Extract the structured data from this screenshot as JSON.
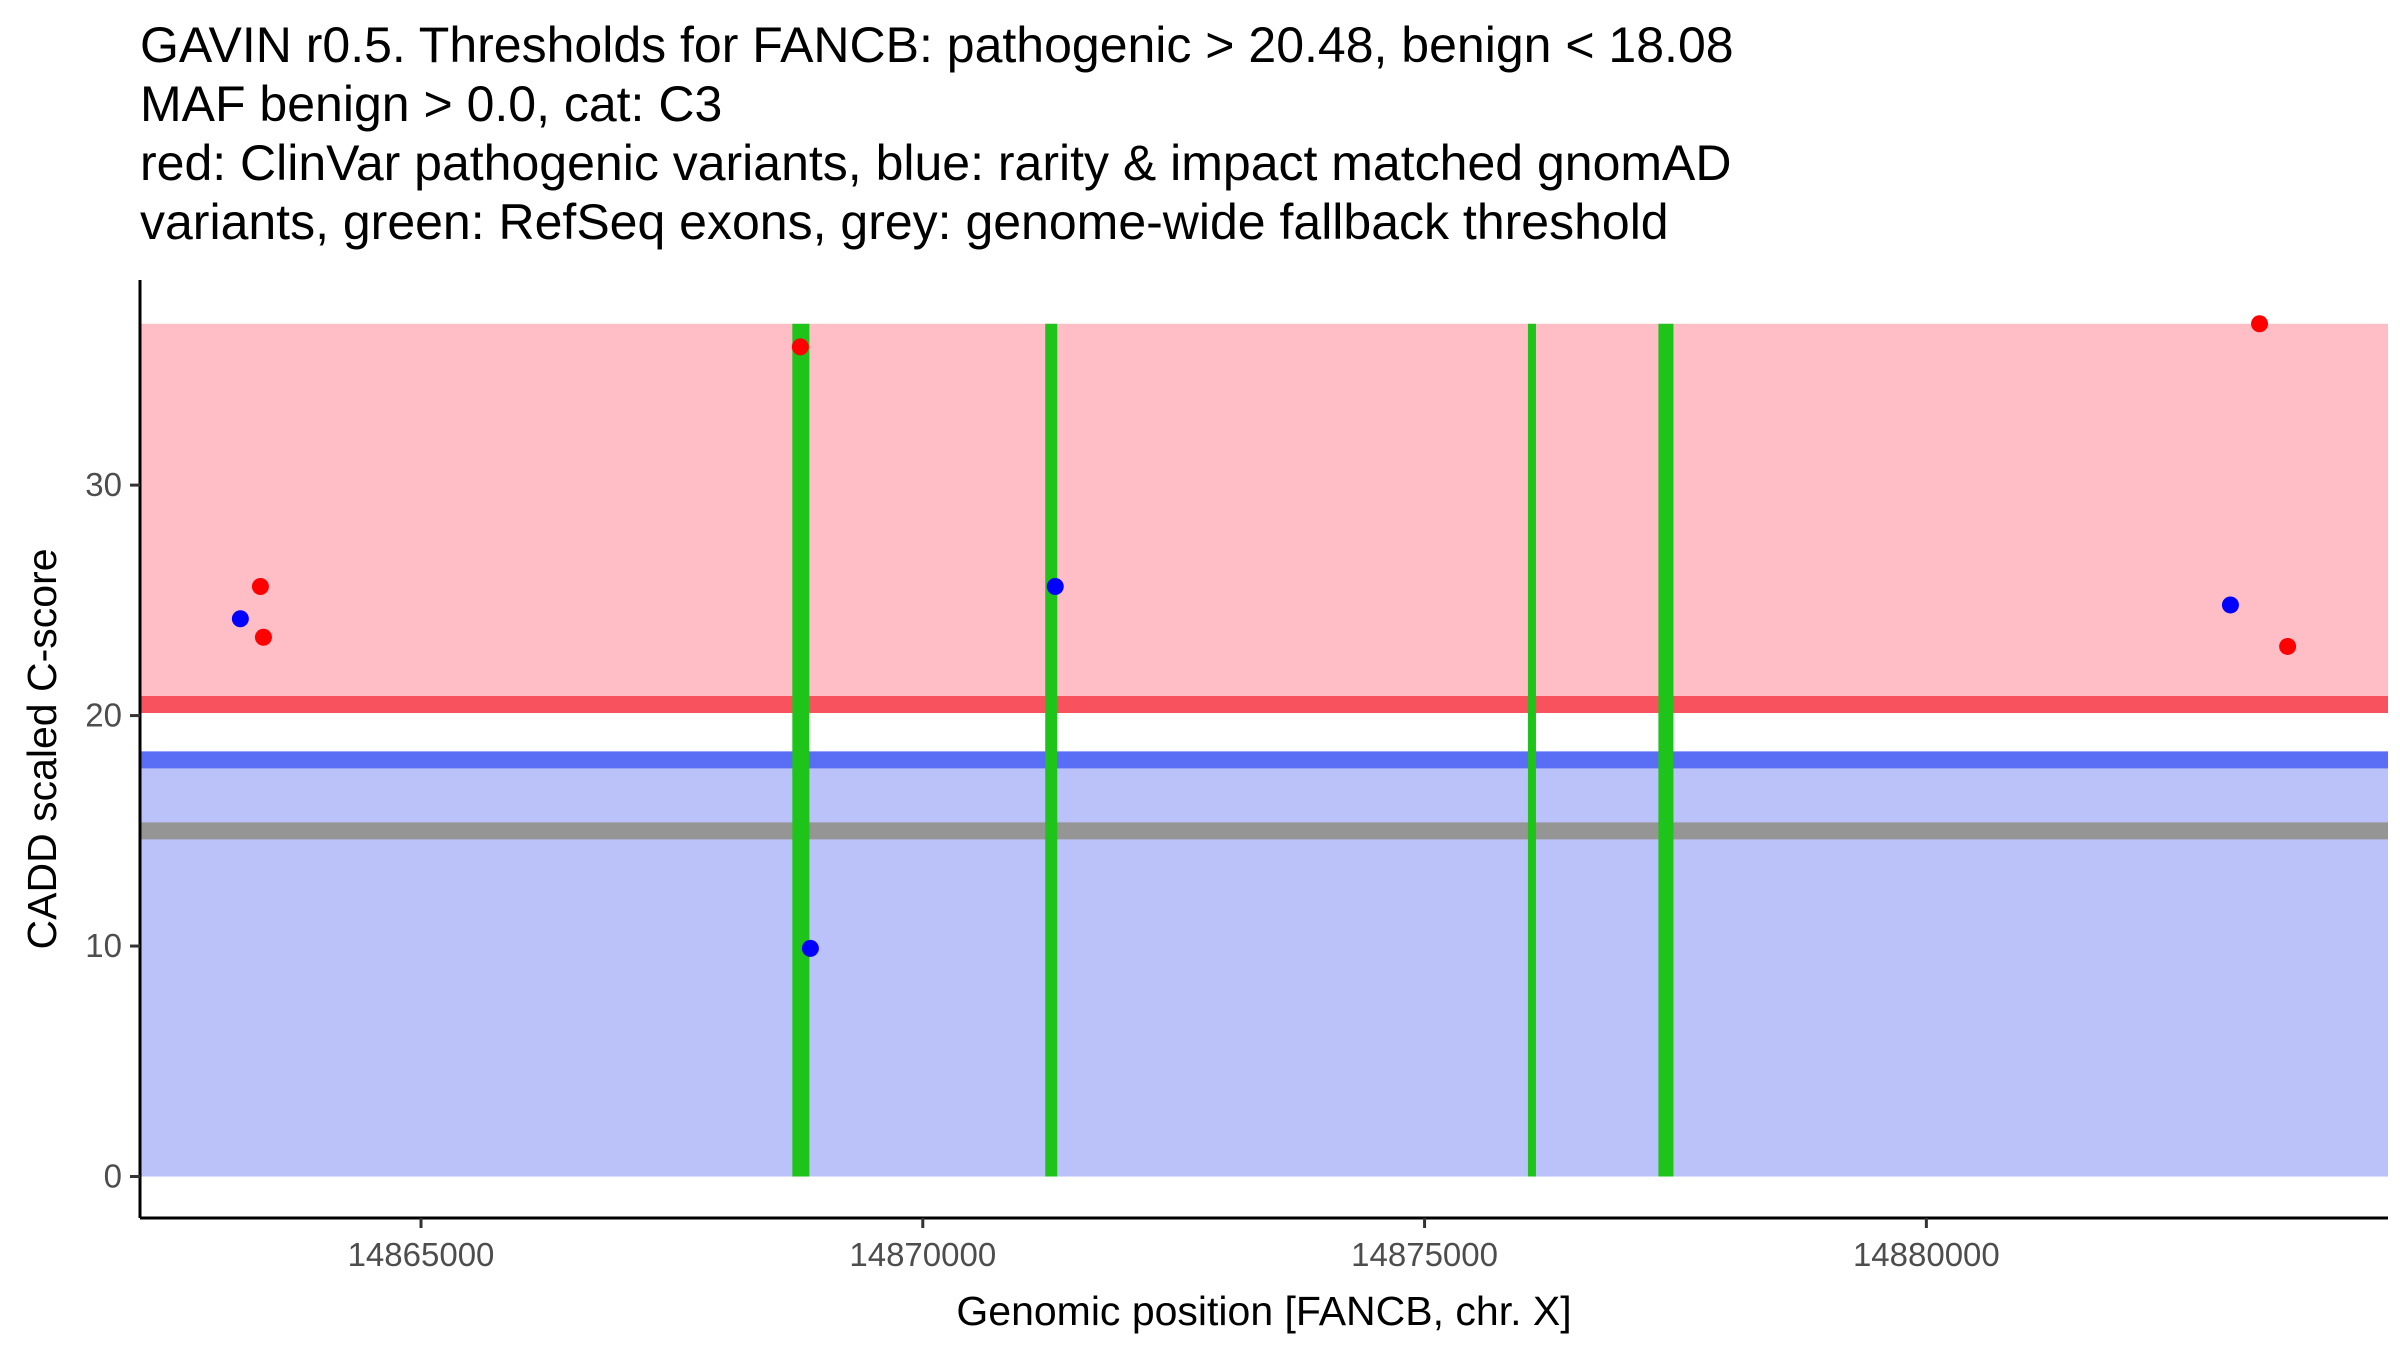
{
  "chart_data": {
    "type": "scatter",
    "title_lines": [
      "GAVIN r0.5. Thresholds for FANCB: pathogenic > 20.48, benign < 18.08",
      "MAF benign > 0.0, cat: C3",
      "red: ClinVar pathogenic variants, blue: rarity & impact matched gnomAD",
      "variants, green: RefSeq exons, grey: genome-wide fallback threshold"
    ],
    "xlabel": "Genomic position [FANCB, chr. X]",
    "ylabel": "CADD scaled C-score",
    "xlim": [
      14862200,
      14884600
    ],
    "ylim": [
      -1.8,
      38.9
    ],
    "x_ticks": [
      14865000,
      14870000,
      14875000,
      14880000
    ],
    "x_tick_labels": [
      "14865000",
      "14870000",
      "14875000",
      "14880000"
    ],
    "y_ticks": [
      0,
      10,
      20,
      30
    ],
    "y_tick_labels": [
      "0",
      "10",
      "20",
      "30"
    ],
    "pathogenic_region": {
      "from": 20.48,
      "to": 37.0,
      "color": "#ffbec5"
    },
    "benign_region": {
      "from": 0.0,
      "to": 18.08,
      "color": "#bbc2fa"
    },
    "thresholds": [
      {
        "name": "pathogenic",
        "value": 20.48,
        "color": "#f8525f"
      },
      {
        "name": "benign",
        "value": 18.08,
        "color": "#5a6ef5"
      },
      {
        "name": "genome-wide fallback",
        "value": 15.0,
        "color": "#959595"
      }
    ],
    "exons": {
      "color": "#1ec41a",
      "intervals": [
        [
          14868700,
          14868870
        ],
        [
          14871220,
          14871340
        ],
        [
          14876030,
          14876110
        ],
        [
          14877330,
          14877480
        ]
      ]
    },
    "series": [
      {
        "name": "ClinVar pathogenic variants",
        "color": "#ff0000",
        "points": [
          {
            "x": 14863400,
            "y": 25.6
          },
          {
            "x": 14863430,
            "y": 23.4
          },
          {
            "x": 14868780,
            "y": 36.0
          },
          {
            "x": 14883320,
            "y": 37.0
          },
          {
            "x": 14883600,
            "y": 23.0
          }
        ]
      },
      {
        "name": "rarity & impact matched gnomAD variants",
        "color": "#0000ff",
        "points": [
          {
            "x": 14863200,
            "y": 24.2
          },
          {
            "x": 14868880,
            "y": 9.9
          },
          {
            "x": 14871320,
            "y": 25.6
          },
          {
            "x": 14883030,
            "y": 24.8
          }
        ]
      }
    ]
  }
}
